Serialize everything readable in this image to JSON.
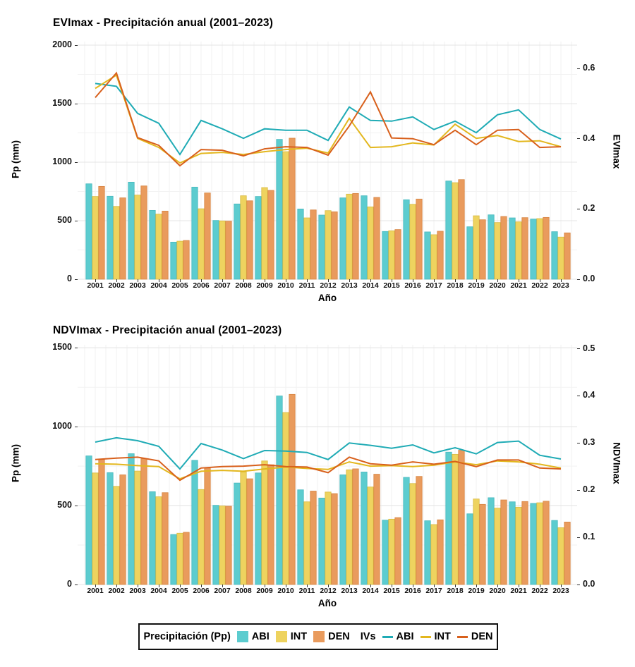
{
  "colors": {
    "bar_abi": "#5CCCCF",
    "bar_int": "#EED35F",
    "bar_den": "#E99B5D",
    "bar_abi_border": "#48B9BF",
    "bar_int_border": "#D8BB44",
    "bar_den_border": "#D78543",
    "line_abi": "#1FABB5",
    "line_int": "#E3B71E",
    "line_den": "#D8601C",
    "grid_major": "#e4e4e4",
    "grid_minor": "#f2f2f2",
    "text": "#111111"
  },
  "legend": {
    "bar_group_label": "Precipitación (Pp)",
    "line_group_label": "IVs",
    "bar_items": [
      "ABI",
      "INT",
      "DEN"
    ],
    "line_items": [
      "ABI",
      "INT",
      "DEN"
    ]
  },
  "chart_data": [
    {
      "type": "bar+line",
      "title": "EVImax - Precipitación anual (2001–2023)",
      "xlabel": "Año",
      "ylabel_left": "Pp (mm)",
      "ylabel_right": "EVImax",
      "ylim_left": [
        0,
        2000
      ],
      "ylim_right": [
        0,
        0.6
      ],
      "left_ticks": [
        0,
        500,
        1000,
        1500,
        2000
      ],
      "left_tick_labels": [
        "0",
        "500",
        "1000",
        "1500",
        "2000"
      ],
      "right_ticks": [
        0,
        0.2,
        0.4,
        0.6
      ],
      "right_tick_labels": [
        "0.0",
        "0.2",
        "0.4",
        "0.6"
      ],
      "grid": true,
      "legend_position": "bottom",
      "categories": [
        2001,
        2002,
        2003,
        2004,
        2005,
        2006,
        2007,
        2008,
        2009,
        2010,
        2011,
        2012,
        2013,
        2014,
        2015,
        2016,
        2017,
        2018,
        2019,
        2020,
        2021,
        2022,
        2023
      ],
      "bar_series": [
        {
          "name": "ABI",
          "values": [
            815,
            709,
            829,
            588,
            317,
            787,
            502,
            643,
            707,
            1195,
            600,
            548,
            695,
            713,
            408,
            679,
            404,
            839,
            448,
            550,
            524,
            514,
            406
          ]
        },
        {
          "name": "INT",
          "values": [
            707,
            622,
            719,
            556,
            325,
            602,
            498,
            713,
            783,
            1090,
            524,
            586,
            727,
            618,
            414,
            640,
            380,
            825,
            542,
            484,
            490,
            518,
            360
          ]
        },
        {
          "name": "DEN",
          "values": [
            793,
            695,
            797,
            582,
            331,
            737,
            496,
            670,
            759,
            1205,
            592,
            576,
            733,
            699,
            424,
            685,
            410,
            851,
            508,
            536,
            526,
            528,
            396
          ]
        }
      ],
      "line_series": [
        {
          "name": "ABI",
          "values": [
            0.557,
            0.549,
            0.472,
            0.444,
            0.355,
            0.452,
            0.428,
            0.401,
            0.428,
            0.424,
            0.424,
            0.395,
            0.49,
            0.452,
            0.45,
            0.462,
            0.426,
            0.45,
            0.417,
            0.468,
            0.482,
            0.426,
            0.399
          ]
        },
        {
          "name": "INT",
          "values": [
            0.543,
            0.581,
            0.401,
            0.375,
            0.331,
            0.358,
            0.361,
            0.355,
            0.363,
            0.369,
            0.373,
            0.359,
            0.458,
            0.375,
            0.377,
            0.388,
            0.382,
            0.441,
            0.401,
            0.409,
            0.392,
            0.394,
            0.377
          ]
        },
        {
          "name": "DEN",
          "values": [
            0.517,
            0.587,
            0.403,
            0.381,
            0.323,
            0.369,
            0.367,
            0.351,
            0.371,
            0.377,
            0.375,
            0.353,
            0.436,
            0.533,
            0.402,
            0.4,
            0.383,
            0.424,
            0.383,
            0.424,
            0.426,
            0.375,
            0.377
          ]
        }
      ]
    },
    {
      "type": "bar+line",
      "title": "NDVImax - Precipitación anual (2001–2023)",
      "xlabel": "Año",
      "ylabel_left": "Pp (mm)",
      "ylabel_right": "NDVImax",
      "ylim_left": [
        0,
        1500
      ],
      "ylim_right": [
        0,
        0.5
      ],
      "left_ticks": [
        0,
        500,
        1000,
        1500
      ],
      "left_tick_labels": [
        "0",
        "500",
        "1000",
        "1500"
      ],
      "right_ticks": [
        0,
        0.1,
        0.2,
        0.3,
        0.4,
        0.5
      ],
      "right_tick_labels": [
        "0.0",
        "0.1",
        "0.2",
        "0.3",
        "0.4",
        "0.5"
      ],
      "grid": true,
      "legend_position": "bottom",
      "categories": [
        2001,
        2002,
        2003,
        2004,
        2005,
        2006,
        2007,
        2008,
        2009,
        2010,
        2011,
        2012,
        2013,
        2014,
        2015,
        2016,
        2017,
        2018,
        2019,
        2020,
        2021,
        2022,
        2023
      ],
      "bar_series": [
        {
          "name": "ABI",
          "values": [
            815,
            709,
            829,
            588,
            317,
            787,
            502,
            643,
            707,
            1195,
            600,
            548,
            695,
            713,
            408,
            679,
            404,
            839,
            448,
            550,
            524,
            514,
            406
          ]
        },
        {
          "name": "INT",
          "values": [
            707,
            622,
            719,
            556,
            325,
            602,
            498,
            713,
            783,
            1090,
            524,
            586,
            727,
            618,
            414,
            640,
            380,
            825,
            542,
            484,
            490,
            518,
            360
          ]
        },
        {
          "name": "DEN",
          "values": [
            793,
            695,
            797,
            582,
            331,
            737,
            496,
            670,
            759,
            1205,
            592,
            576,
            733,
            699,
            424,
            685,
            410,
            851,
            508,
            536,
            526,
            528,
            396
          ]
        }
      ],
      "line_series": [
        {
          "name": "ABI",
          "values": [
            0.302,
            0.311,
            0.305,
            0.293,
            0.245,
            0.299,
            0.285,
            0.267,
            0.284,
            0.283,
            0.28,
            0.265,
            0.3,
            0.295,
            0.289,
            0.296,
            0.279,
            0.29,
            0.277,
            0.301,
            0.304,
            0.274,
            0.266
          ]
        },
        {
          "name": "INT",
          "values": [
            0.256,
            0.255,
            0.252,
            0.25,
            0.224,
            0.24,
            0.242,
            0.24,
            0.245,
            0.249,
            0.246,
            0.244,
            0.26,
            0.251,
            0.252,
            0.25,
            0.253,
            0.26,
            0.254,
            0.262,
            0.26,
            0.255,
            0.247
          ]
        },
        {
          "name": "DEN",
          "values": [
            0.265,
            0.268,
            0.27,
            0.262,
            0.221,
            0.247,
            0.25,
            0.251,
            0.254,
            0.25,
            0.249,
            0.237,
            0.27,
            0.256,
            0.253,
            0.26,
            0.255,
            0.261,
            0.25,
            0.264,
            0.264,
            0.247,
            0.245
          ]
        }
      ]
    }
  ]
}
